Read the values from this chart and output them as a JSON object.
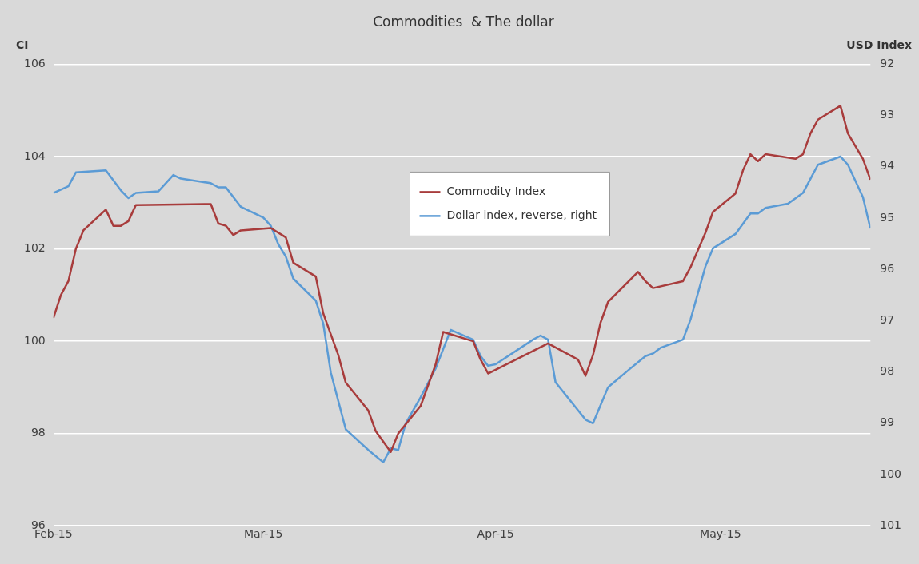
{
  "chart_data": {
    "type": "line",
    "title": "Commodities  & The dollar",
    "ylabel": "CI",
    "y2label": "USD Index",
    "xlim": [
      "2015-02-01",
      "2015-05-21"
    ],
    "xticks": [
      {
        "value": "2015-02-01",
        "label": "Feb-15"
      },
      {
        "value": "2015-03-01",
        "label": "Mar-15"
      },
      {
        "value": "2015-04-01",
        "label": "Apr-15"
      },
      {
        "value": "2015-05-01",
        "label": "May-15"
      }
    ],
    "ylim": [
      96,
      106
    ],
    "yticks": [
      96,
      98,
      100,
      102,
      104,
      106
    ],
    "y2lim": [
      101,
      92
    ],
    "y2ticks": [
      92,
      93,
      94,
      95,
      96,
      97,
      98,
      99,
      100,
      101
    ],
    "grid": "y",
    "legend": "top",
    "marker": "none",
    "line_style": "solid",
    "series": [
      {
        "name": "Commodity Index",
        "color": "#a83c3c",
        "x": [
          "2015-02-01",
          "2015-02-02",
          "2015-02-03",
          "2015-02-04",
          "2015-02-05",
          "2015-02-08",
          "2015-02-09",
          "2015-02-10",
          "2015-02-11",
          "2015-02-12",
          "2015-02-22",
          "2015-02-23",
          "2015-02-24",
          "2015-02-25",
          "2015-02-26",
          "2015-03-02",
          "2015-03-04",
          "2015-03-05",
          "2015-03-08",
          "2015-03-09",
          "2015-03-11",
          "2015-03-12",
          "2015-03-15",
          "2015-03-16",
          "2015-03-18",
          "2015-03-19",
          "2015-03-22",
          "2015-03-24",
          "2015-03-25",
          "2015-03-29",
          "2015-03-30",
          "2015-03-31",
          "2015-04-08",
          "2015-04-12",
          "2015-04-13",
          "2015-04-14",
          "2015-04-15",
          "2015-04-16",
          "2015-04-20",
          "2015-04-21",
          "2015-04-22",
          "2015-04-26",
          "2015-04-27",
          "2015-04-29",
          "2015-04-30",
          "2015-05-03",
          "2015-05-04",
          "2015-05-05",
          "2015-05-06",
          "2015-05-07",
          "2015-05-11",
          "2015-05-12",
          "2015-05-13",
          "2015-05-14",
          "2015-05-17",
          "2015-05-18",
          "2015-05-20",
          "2015-05-21"
        ],
        "values": [
          100.5,
          101.0,
          101.3,
          102.0,
          102.4,
          102.85,
          102.5,
          102.5,
          102.6,
          102.95,
          102.97,
          102.55,
          102.5,
          102.3,
          102.4,
          102.45,
          102.25,
          101.7,
          101.4,
          100.6,
          99.7,
          99.1,
          98.5,
          98.05,
          97.6,
          98.0,
          98.6,
          99.5,
          100.2,
          100.0,
          99.6,
          99.3,
          99.95,
          99.6,
          99.25,
          99.7,
          100.4,
          100.85,
          101.5,
          101.3,
          101.15,
          101.3,
          101.6,
          102.35,
          102.8,
          103.2,
          103.7,
          104.05,
          103.9,
          104.05,
          103.95,
          104.05,
          104.5,
          104.8,
          105.1,
          104.5,
          103.95,
          103.5
        ]
      },
      {
        "name": "Dollar index, reverse, right",
        "color": "#5b9bd5",
        "axis": "y2",
        "x": [
          "2015-02-01",
          "2015-02-03",
          "2015-02-04",
          "2015-02-08",
          "2015-02-10",
          "2015-02-11",
          "2015-02-12",
          "2015-02-15",
          "2015-02-17",
          "2015-02-18",
          "2015-02-22",
          "2015-02-23",
          "2015-02-24",
          "2015-02-26",
          "2015-03-01",
          "2015-03-02",
          "2015-03-03",
          "2015-03-04",
          "2015-03-05",
          "2015-03-08",
          "2015-03-09",
          "2015-03-10",
          "2015-03-12",
          "2015-03-15",
          "2015-03-17",
          "2015-03-18",
          "2015-03-19",
          "2015-03-20",
          "2015-03-22",
          "2015-03-24",
          "2015-03-26",
          "2015-03-29",
          "2015-03-30",
          "2015-03-31",
          "2015-04-01",
          "2015-04-06",
          "2015-04-07",
          "2015-04-08",
          "2015-04-09",
          "2015-04-13",
          "2015-04-14",
          "2015-04-16",
          "2015-04-19",
          "2015-04-21",
          "2015-04-22",
          "2015-04-23",
          "2015-04-26",
          "2015-04-27",
          "2015-04-29",
          "2015-04-30",
          "2015-05-03",
          "2015-05-05",
          "2015-05-06",
          "2015-05-07",
          "2015-05-10",
          "2015-05-12",
          "2015-05-14",
          "2015-05-17",
          "2015-05-18",
          "2015-05-20",
          "2015-05-21"
        ],
        "values": [
          94.51,
          94.38,
          94.11,
          94.07,
          94.46,
          94.61,
          94.51,
          94.48,
          94.16,
          94.23,
          94.32,
          94.4,
          94.4,
          94.78,
          94.99,
          95.15,
          95.51,
          95.75,
          96.18,
          96.61,
          97.06,
          98.01,
          99.12,
          99.52,
          99.76,
          99.49,
          99.52,
          99.0,
          98.49,
          97.93,
          97.18,
          97.37,
          97.69,
          97.88,
          97.85,
          97.37,
          97.29,
          97.37,
          98.2,
          98.93,
          99.0,
          98.3,
          97.93,
          97.69,
          97.64,
          97.53,
          97.37,
          96.98,
          95.94,
          95.59,
          95.31,
          94.91,
          94.91,
          94.8,
          94.72,
          94.51,
          93.96,
          93.8,
          93.96,
          94.59,
          95.2
        ]
      }
    ]
  }
}
